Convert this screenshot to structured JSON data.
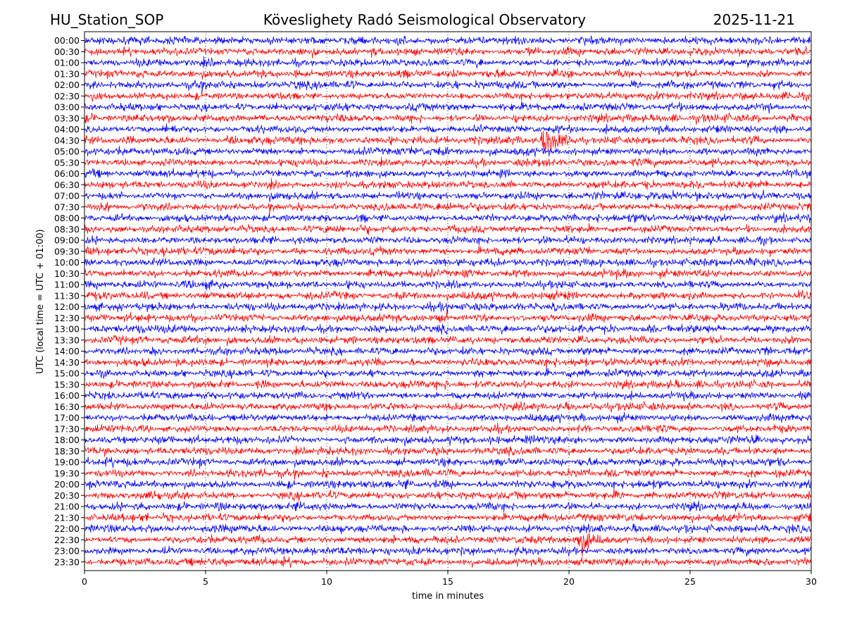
{
  "header": {
    "station": "HU_Station_SOP",
    "observatory": "Köveslighety Radó Seismological Observatory",
    "date": "2025-11-21"
  },
  "chart_data": {
    "type": "line",
    "title": "Köveslighety Radó Seismological Observatory",
    "xlabel": "time in minutes",
    "ylabel": "UTC (local time = UTC + 01:00)",
    "xlim": [
      0,
      30
    ],
    "xticks": [
      "0",
      "5",
      "10",
      "15",
      "20",
      "25",
      "30"
    ],
    "xtick_values": [
      0,
      5,
      10,
      15,
      20,
      25,
      30
    ],
    "grid": "x-dotted",
    "colors": [
      "#0000ff",
      "#ff0000"
    ],
    "rows": [
      "00:00",
      "00:30",
      "01:00",
      "01:30",
      "02:00",
      "02:30",
      "03:00",
      "03:30",
      "04:00",
      "04:30",
      "05:00",
      "05:30",
      "06:00",
      "06:30",
      "07:00",
      "07:30",
      "08:00",
      "08:30",
      "09:00",
      "09:30",
      "10:00",
      "10:30",
      "11:00",
      "11:30",
      "12:00",
      "12:30",
      "13:00",
      "13:30",
      "14:00",
      "14:30",
      "15:00",
      "15:30",
      "16:00",
      "16:30",
      "17:00",
      "17:30",
      "18:00",
      "18:30",
      "19:00",
      "19:30",
      "20:00",
      "20:30",
      "21:00",
      "21:30",
      "22:00",
      "22:30",
      "23:00",
      "23:30"
    ],
    "noise_amplitude": 1,
    "events": [
      {
        "row": 9,
        "start_minute": 18.8,
        "duration_minutes": 2.5,
        "peak_amplitude": 6,
        "note": "spike at ~03:00-05:00 band"
      },
      {
        "row": 25,
        "start_minute": 4.3,
        "duration_minutes": 1.6,
        "peak_amplitude": 2.4
      },
      {
        "row": 45,
        "start_minute": 20.2,
        "duration_minutes": 2.6,
        "peak_amplitude": 5
      }
    ]
  }
}
